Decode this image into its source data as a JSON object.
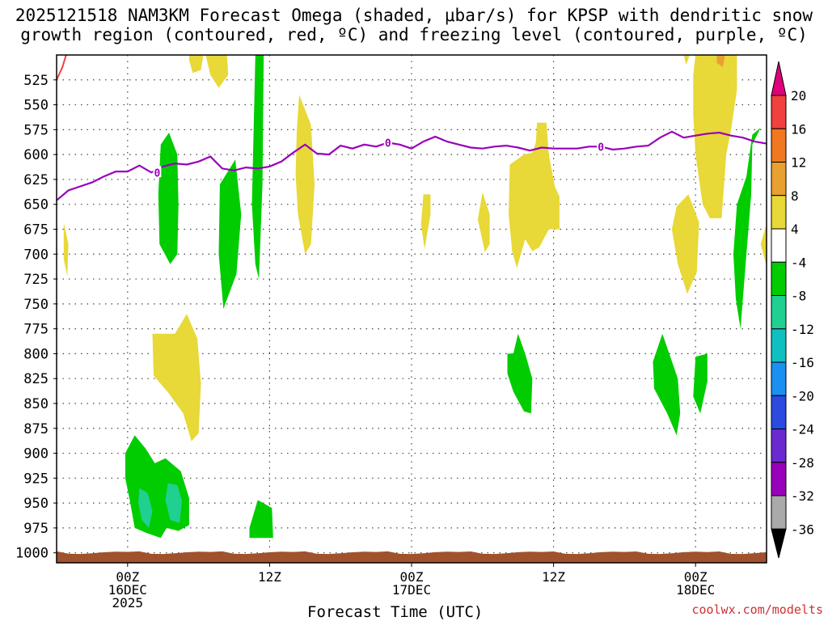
{
  "title": {
    "line1": "2025121518 NAM3KM Forecast Omega (shaded, μbar/s) for KPSP with dendritic snow",
    "line2": "growth region (contoured, red, ºC) and freezing level (contoured, purple, ºC)"
  },
  "credit": "coolwx.com/modelts",
  "chart_data": {
    "type": "heatmap",
    "title": "2025121518 NAM3KM Forecast Omega (shaded, μbar/s) for KPSP with dendritic snow growth region (contoured, red, ºC) and freezing level (contoured, purple, ºC)",
    "xlabel": "Forecast Time (UTC)",
    "ylabel": "Pressure (hPa)",
    "x_unit": "forecast hour from 2025121518",
    "xlim": [
      0,
      60
    ],
    "ylim": [
      1010,
      500
    ],
    "y_ticks": [
      525,
      550,
      575,
      600,
      625,
      650,
      675,
      700,
      725,
      750,
      775,
      800,
      825,
      850,
      875,
      900,
      925,
      950,
      975,
      1000
    ],
    "x_ticks": [
      {
        "hour": 6,
        "lines": [
          "00Z",
          "16DEC",
          "2025"
        ]
      },
      {
        "hour": 18,
        "lines": [
          "12Z"
        ]
      },
      {
        "hour": 30,
        "lines": [
          "00Z",
          "17DEC"
        ]
      },
      {
        "hour": 42,
        "lines": [
          "12Z"
        ]
      },
      {
        "hour": 54,
        "lines": [
          "00Z",
          "18DEC"
        ]
      }
    ],
    "colorbar": {
      "levels": [
        -36,
        -32,
        -28,
        -24,
        -20,
        -16,
        -12,
        -8,
        -4,
        4,
        8,
        12,
        16,
        20
      ],
      "colors": [
        "#000000",
        "#aaaaaa",
        "#9900bb",
        "#6a2ad0",
        "#2a4ae0",
        "#1a90f0",
        "#10c0c0",
        "#20d090",
        "#00cc00",
        "#ffffff",
        "#e8d838",
        "#e8a030",
        "#f07820",
        "#f04040",
        "#e0007a"
      ]
    },
    "freezing_level": {
      "label": "0",
      "color": "#9900bb",
      "points": [
        [
          0,
          646
        ],
        [
          1,
          636
        ],
        [
          2,
          632
        ],
        [
          3,
          628
        ],
        [
          4,
          622
        ],
        [
          5,
          617
        ],
        [
          6,
          617
        ],
        [
          7,
          611
        ],
        [
          8,
          618
        ],
        [
          9,
          612
        ],
        [
          10,
          609
        ],
        [
          11,
          610
        ],
        [
          12,
          607
        ],
        [
          13,
          602
        ],
        [
          14,
          614
        ],
        [
          15,
          616
        ],
        [
          16,
          613
        ],
        [
          17,
          614
        ],
        [
          18,
          612
        ],
        [
          19,
          607
        ],
        [
          20,
          598
        ],
        [
          21,
          590
        ],
        [
          22,
          599
        ],
        [
          23,
          600
        ],
        [
          24,
          591
        ],
        [
          25,
          594
        ],
        [
          26,
          590
        ],
        [
          27,
          592
        ],
        [
          28,
          588
        ],
        [
          29,
          590
        ],
        [
          30,
          594
        ],
        [
          31,
          587
        ],
        [
          32,
          582
        ],
        [
          33,
          587
        ],
        [
          34,
          590
        ],
        [
          35,
          593
        ],
        [
          36,
          594
        ],
        [
          37,
          592
        ],
        [
          38,
          591
        ],
        [
          39,
          593
        ],
        [
          40,
          596
        ],
        [
          41,
          593
        ],
        [
          42,
          594
        ],
        [
          43,
          594
        ],
        [
          44,
          594
        ],
        [
          45,
          592
        ],
        [
          46,
          592
        ],
        [
          47,
          595
        ],
        [
          48,
          594
        ],
        [
          49,
          592
        ],
        [
          50,
          591
        ],
        [
          51,
          583
        ],
        [
          52,
          577
        ],
        [
          53,
          583
        ],
        [
          54,
          581
        ],
        [
          55,
          579
        ],
        [
          56,
          578
        ],
        [
          57,
          581
        ],
        [
          58,
          583
        ],
        [
          59,
          587
        ],
        [
          60,
          589
        ]
      ]
    },
    "dgz_contour": {
      "color": "#f04040",
      "points": [
        [
          0,
          525
        ],
        [
          0.5,
          512
        ],
        [
          0.8,
          500
        ]
      ]
    },
    "terrain": {
      "color": "#a0522d",
      "label": "surface"
    },
    "omega_regions": [
      {
        "value": 6,
        "polygon": [
          [
            11.2,
            500
          ],
          [
            12.4,
            500
          ],
          [
            12.2,
            515
          ],
          [
            11.5,
            518
          ],
          [
            11.2,
            505
          ]
        ]
      },
      {
        "value": 6,
        "polygon": [
          [
            12.6,
            500
          ],
          [
            14.4,
            500
          ],
          [
            14.5,
            520
          ],
          [
            13.7,
            533
          ],
          [
            13,
            520
          ]
        ]
      },
      {
        "value": 6,
        "polygon": [
          [
            0.6,
            668
          ],
          [
            1.0,
            690
          ],
          [
            0.9,
            722
          ],
          [
            0.6,
            705
          ]
        ]
      },
      {
        "value": 6,
        "polygon": [
          [
            20.5,
            540
          ],
          [
            21.5,
            570
          ],
          [
            21.8,
            630
          ],
          [
            21.5,
            690
          ],
          [
            21,
            700
          ],
          [
            20.4,
            660
          ],
          [
            20.2,
            620
          ],
          [
            20.3,
            575
          ]
        ]
      },
      {
        "value": 6,
        "polygon": [
          [
            31,
            640
          ],
          [
            31.6,
            640
          ],
          [
            31.6,
            660
          ],
          [
            31.1,
            695
          ],
          [
            30.8,
            670
          ]
        ]
      },
      {
        "value": 6,
        "polygon": [
          [
            36,
            638
          ],
          [
            36.6,
            660
          ],
          [
            36.6,
            690
          ],
          [
            36.2,
            698
          ],
          [
            35.6,
            665
          ]
        ]
      },
      {
        "value": 6,
        "polygon": [
          [
            38.3,
            610
          ],
          [
            39.5,
            600
          ],
          [
            40.2,
            598
          ],
          [
            40.5,
            588
          ],
          [
            40.6,
            568
          ],
          [
            41.4,
            568
          ],
          [
            41.6,
            600
          ],
          [
            42.1,
            632
          ],
          [
            42.5,
            642
          ],
          [
            42.5,
            675
          ],
          [
            41.6,
            675
          ],
          [
            40.8,
            693
          ],
          [
            40.2,
            697
          ],
          [
            39.6,
            685
          ],
          [
            38.9,
            714
          ],
          [
            38.5,
            697
          ],
          [
            38.2,
            660
          ]
        ]
      },
      {
        "value": 6,
        "polygon": [
          [
            52.4,
            652
          ],
          [
            53.4,
            640
          ],
          [
            54.3,
            668
          ],
          [
            54.1,
            718
          ],
          [
            53.3,
            740
          ],
          [
            52.5,
            710
          ],
          [
            52,
            675
          ]
        ]
      },
      {
        "value": 6,
        "polygon": [
          [
            54,
            500
          ],
          [
            57.5,
            500
          ],
          [
            57.5,
            535
          ],
          [
            57,
            575
          ],
          [
            56.6,
            600
          ],
          [
            56.2,
            664
          ],
          [
            55.2,
            664
          ],
          [
            54.6,
            650
          ],
          [
            54,
            600
          ],
          [
            53.8,
            560
          ],
          [
            53.8,
            520
          ]
        ]
      },
      {
        "value": 10,
        "polygon": [
          [
            55.8,
            500
          ],
          [
            56.5,
            500
          ],
          [
            56.3,
            512
          ],
          [
            55.8,
            508
          ]
        ]
      },
      {
        "value": 6,
        "polygon": [
          [
            53.0,
            500
          ],
          [
            53.5,
            500
          ],
          [
            53.2,
            510
          ]
        ]
      },
      {
        "value": 6,
        "polygon": [
          [
            59.5,
            690
          ],
          [
            60,
            670
          ],
          [
            60,
            712
          ]
        ]
      },
      {
        "value": 6,
        "polygon": [
          [
            8.1,
            780
          ],
          [
            10,
            780
          ],
          [
            11,
            760
          ],
          [
            11.9,
            785
          ],
          [
            12.2,
            830
          ],
          [
            12,
            880
          ],
          [
            11.4,
            888
          ],
          [
            10.7,
            860
          ],
          [
            9.5,
            840
          ],
          [
            8.2,
            822
          ]
        ]
      },
      {
        "value": -6,
        "polygon": [
          [
            8.8,
            590
          ],
          [
            9.5,
            578
          ],
          [
            10.2,
            600
          ],
          [
            10.3,
            650
          ],
          [
            10.2,
            700
          ],
          [
            9.6,
            710
          ],
          [
            8.7,
            690
          ],
          [
            8.6,
            640
          ]
        ]
      },
      {
        "value": -6,
        "polygon": [
          [
            13.8,
            630
          ],
          [
            15.1,
            605
          ],
          [
            15.6,
            660
          ],
          [
            15.2,
            720
          ],
          [
            14.1,
            755
          ],
          [
            13.7,
            700
          ]
        ]
      },
      {
        "value": -6,
        "polygon": [
          [
            16.8,
            500
          ],
          [
            17.5,
            500
          ],
          [
            17.4,
            630
          ],
          [
            17.1,
            725
          ],
          [
            16.8,
            710
          ],
          [
            16.5,
            650
          ],
          [
            16.7,
            550
          ]
        ]
      },
      {
        "value": -6,
        "polygon": [
          [
            38.1,
            800
          ],
          [
            38.6,
            800
          ],
          [
            39,
            780
          ],
          [
            39.6,
            800
          ],
          [
            40.2,
            825
          ],
          [
            40.1,
            860
          ],
          [
            39.5,
            858
          ],
          [
            38.6,
            838
          ],
          [
            38.1,
            820
          ]
        ]
      },
      {
        "value": -6,
        "polygon": [
          [
            50.4,
            808
          ],
          [
            51.2,
            780
          ],
          [
            52.5,
            825
          ],
          [
            52.7,
            860
          ],
          [
            52.4,
            882
          ],
          [
            51.6,
            860
          ],
          [
            50.5,
            835
          ]
        ]
      },
      {
        "value": -6,
        "polygon": [
          [
            54,
            803
          ],
          [
            55,
            800
          ],
          [
            55,
            828
          ],
          [
            54.4,
            860
          ],
          [
            53.8,
            843
          ]
        ]
      },
      {
        "value": -6,
        "polygon": [
          [
            57.5,
            650
          ],
          [
            58.3,
            622
          ],
          [
            58.8,
            580
          ],
          [
            59.5,
            573
          ],
          [
            58.8,
            590
          ],
          [
            58.7,
            640
          ],
          [
            58.3,
            700
          ],
          [
            57.8,
            775
          ],
          [
            57.4,
            745
          ],
          [
            57.2,
            700
          ]
        ]
      },
      {
        "value": -6,
        "polygon": [
          [
            16.3,
            975
          ],
          [
            17,
            947
          ],
          [
            18.2,
            955
          ],
          [
            18.3,
            985
          ],
          [
            16.3,
            985
          ]
        ]
      },
      {
        "value": -6,
        "polygon": [
          [
            5.8,
            900
          ],
          [
            6.6,
            882
          ],
          [
            7.5,
            895
          ],
          [
            8.3,
            910
          ],
          [
            9.2,
            905
          ],
          [
            10.5,
            918
          ],
          [
            11.2,
            945
          ],
          [
            11.2,
            972
          ],
          [
            10.3,
            978
          ],
          [
            9.3,
            975
          ],
          [
            8.8,
            985
          ],
          [
            7.6,
            980
          ],
          [
            6.6,
            975
          ],
          [
            6.2,
            948
          ],
          [
            5.8,
            925
          ]
        ]
      },
      {
        "value": -10,
        "polygon": [
          [
            7,
            935
          ],
          [
            7.7,
            940
          ],
          [
            8.1,
            958
          ],
          [
            7.8,
            975
          ],
          [
            7.2,
            967
          ],
          [
            6.9,
            950
          ]
        ]
      },
      {
        "value": -10,
        "polygon": [
          [
            9.4,
            930
          ],
          [
            10.2,
            932
          ],
          [
            10.6,
            948
          ],
          [
            10.4,
            970
          ],
          [
            9.6,
            967
          ],
          [
            9.2,
            947
          ]
        ]
      }
    ]
  }
}
